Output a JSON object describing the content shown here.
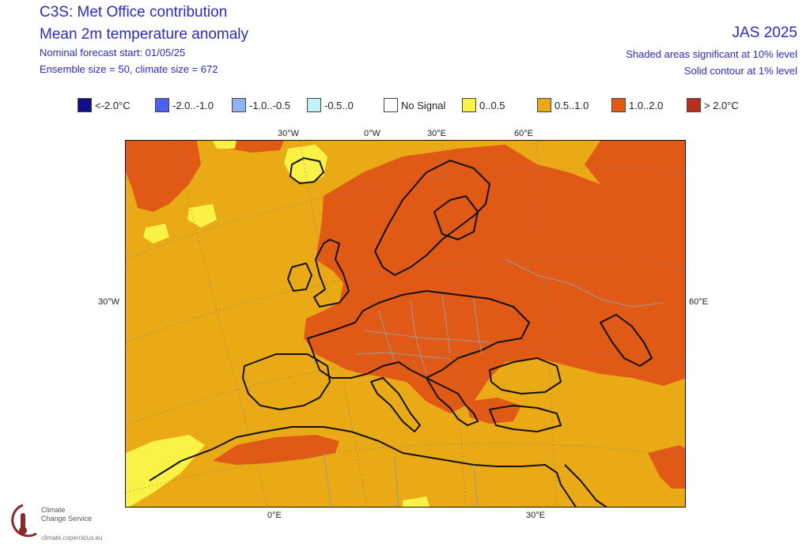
{
  "header": {
    "title": "C3S: Met Office contribution",
    "subtitle": "Mean 2m temperature anomaly",
    "forecast_start": "Nominal forecast start: 01/05/25",
    "ensemble": "Ensemble size = 50, climate size = 672",
    "period": "JAS 2025",
    "sig10": "Shaded areas significant at 10% level",
    "sig1": "Solid contour at 1% level"
  },
  "legend": [
    {
      "label": "<-2.0°C",
      "color": "#10108c"
    },
    {
      "label": "-2.0..-1.0",
      "color": "#4d5ff0"
    },
    {
      "label": "-1.0..-0.5",
      "color": "#8fb2f0"
    },
    {
      "label": "-0.5..0",
      "color": "#bff3f8"
    },
    {
      "label": "No Signal",
      "color": "#ffffff"
    },
    {
      "label": "0..0.5",
      "color": "#fbf246"
    },
    {
      "label": "0.5..1.0",
      "color": "#e9aa16"
    },
    {
      "label": "1.0..2.0",
      "color": "#e05a16"
    },
    {
      "label": "> 2.0°C",
      "color": "#b8301c"
    }
  ],
  "map_labels": {
    "top_30w": "30°W",
    "top_0w": "0°W",
    "top_30e": "30°E",
    "top_60e": "60°E",
    "left_30w": "30°W",
    "right_60e": "60°E",
    "bottom_0e": "0°E",
    "bottom_30e": "30°E"
  },
  "logo": {
    "line1": "Climate",
    "line2": "Change Service",
    "url": "climate.copernicus.eu"
  }
}
